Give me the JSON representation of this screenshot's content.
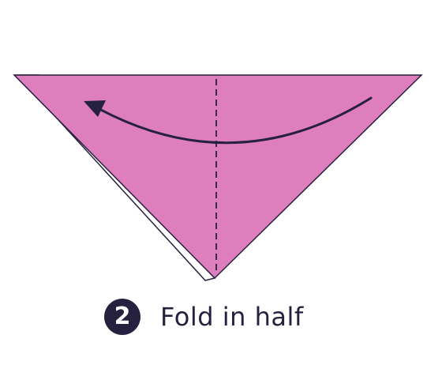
{
  "colors": {
    "paper": "#df7ebd",
    "paper_back": "#ffffff",
    "outline": "#25213f",
    "badge": "#25213f",
    "text": "#25213f"
  },
  "step": {
    "number": "2",
    "instruction": "Fold in half"
  },
  "icons": {
    "fold_arrow": "curved-arrow-left-icon",
    "fold_line": "dashed-fold-line"
  }
}
